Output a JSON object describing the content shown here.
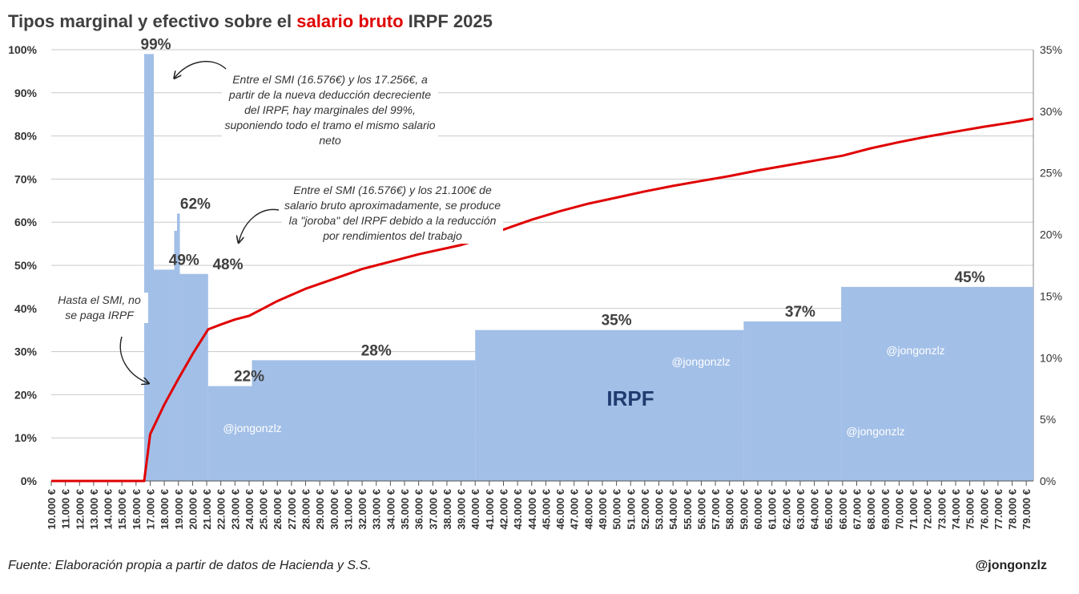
{
  "title": {
    "part1": "Tipos marginal y efectivo sobre el ",
    "highlight": "salario bruto",
    "part2": " IRPF 2025"
  },
  "footer": {
    "source": "Fuente: Elaboración propia a partir de datos de Hacienda y S.S.",
    "handle": "@jongonzlz"
  },
  "annotations": {
    "marginal99": "Entre el SMI (16.576€) y los 17.256€, a partir de la nueva deducción decreciente del IRPF, hay marginales del 99%, suponiendo todo el tramo el mismo salario neto",
    "joroba": "Entre el SMI (16.576€) y los 21.100€ de salario bruto aproximadamente, se produce la \"joroba\" del IRPF debido a la reducción por rendimientos del trabajo",
    "smi": "Hasta el SMI, no se paga IRPF"
  },
  "watermark": "@jongonzlz",
  "colors": {
    "bars": "#a2bfe7",
    "line": "#e00000",
    "grid": "#c8c8c8",
    "irpf_label": "#1f3b70",
    "title_highlight": "#e00000"
  },
  "chart_data": {
    "type": "bar+line",
    "x_unit": "salario bruto (€)",
    "xlim": [
      10000,
      79000
    ],
    "x_ticks": [
      10000,
      11000,
      12000,
      13000,
      14000,
      15000,
      16000,
      17000,
      18000,
      19000,
      20000,
      21000,
      22000,
      23000,
      24000,
      25000,
      26000,
      27000,
      28000,
      29000,
      30000,
      31000,
      32000,
      33000,
      34000,
      35000,
      36000,
      37000,
      38000,
      39000,
      40000,
      41000,
      42000,
      43000,
      44000,
      45000,
      46000,
      47000,
      48000,
      49000,
      50000,
      51000,
      52000,
      53000,
      54000,
      55000,
      56000,
      57000,
      58000,
      59000,
      60000,
      61000,
      62000,
      63000,
      64000,
      65000,
      66000,
      67000,
      68000,
      69000,
      70000,
      71000,
      72000,
      73000,
      74000,
      75000,
      76000,
      77000,
      78000,
      79000
    ],
    "x_tick_labels": [
      "10.000 €",
      "11.000 €",
      "12.000 €",
      "13.000 €",
      "14.000 €",
      "15.000 €",
      "16.000 €",
      "17.000 €",
      "18.000 €",
      "19.000 €",
      "20.000 €",
      "21.000 €",
      "22.000 €",
      "23.000 €",
      "24.000 €",
      "25.000 €",
      "26.000 €",
      "27.000 €",
      "28.000 €",
      "29.000 €",
      "30.000 €",
      "31.000 €",
      "32.000 €",
      "33.000 €",
      "34.000 €",
      "35.000 €",
      "36.000 €",
      "37.000 €",
      "38.000 €",
      "39.000 €",
      "40.000 €",
      "41.000 €",
      "42.000 €",
      "43.000 €",
      "44.000 €",
      "45.000 €",
      "46.000 €",
      "47.000 €",
      "48.000 €",
      "49.000 €",
      "50.000 €",
      "51.000 €",
      "52.000 €",
      "53.000 €",
      "54.000 €",
      "55.000 €",
      "56.000 €",
      "57.000 €",
      "58.000 €",
      "59.000 €",
      "60.000 €",
      "61.000 €",
      "62.000 €",
      "63.000 €",
      "64.000 €",
      "65.000 €",
      "66.000 €",
      "67.000 €",
      "68.000 €",
      "69.000 €",
      "70.000 €",
      "71.000 €",
      "72.000 €",
      "73.000 €",
      "74.000 €",
      "75.000 €",
      "76.000 €",
      "77.000 €",
      "78.000 €",
      "79.000 €"
    ],
    "y_left": {
      "range": [
        0,
        100
      ],
      "ticks": [
        0,
        10,
        20,
        30,
        40,
        50,
        60,
        70,
        80,
        90,
        100
      ],
      "tick_labels": [
        "0%",
        "10%",
        "20%",
        "30%",
        "40%",
        "50%",
        "60%",
        "70%",
        "80%",
        "90%",
        "100%"
      ]
    },
    "y_right": {
      "range": [
        0,
        35
      ],
      "ticks": [
        0,
        5,
        10,
        15,
        20,
        25,
        30,
        35
      ],
      "tick_labels": [
        "0%",
        "5%",
        "10%",
        "15%",
        "20%",
        "25%",
        "30%",
        "35%"
      ]
    },
    "grid": true,
    "series": [
      {
        "name": "IRPF",
        "kind": "step-area",
        "axis": "left",
        "steps": [
          {
            "from": 16576,
            "to": 17256,
            "value": 99
          },
          {
            "from": 17256,
            "to": 18700,
            "value": 49
          },
          {
            "from": 18700,
            "to": 18900,
            "value": 58
          },
          {
            "from": 18900,
            "to": 19100,
            "value": 62
          },
          {
            "from": 19100,
            "to": 21100,
            "value": 48
          },
          {
            "from": 21100,
            "to": 24200,
            "value": 22
          },
          {
            "from": 24200,
            "to": 40000,
            "value": 28
          },
          {
            "from": 40000,
            "to": 59000,
            "value": 35
          },
          {
            "from": 59000,
            "to": 65900,
            "value": 37
          },
          {
            "from": 65900,
            "to": 79500,
            "value": 45
          }
        ]
      },
      {
        "name": "",
        "kind": "line",
        "axis": "right",
        "points": [
          [
            10000,
            0
          ],
          [
            16576,
            0
          ],
          [
            17000,
            3.8
          ],
          [
            18000,
            6.2
          ],
          [
            19000,
            8.3
          ],
          [
            20000,
            10.3
          ],
          [
            21100,
            12.3
          ],
          [
            22000,
            12.7
          ],
          [
            23000,
            13.1
          ],
          [
            24000,
            13.4
          ],
          [
            25000,
            14.0
          ],
          [
            26000,
            14.6
          ],
          [
            27000,
            15.1
          ],
          [
            28000,
            15.6
          ],
          [
            29000,
            16.0
          ],
          [
            30000,
            16.4
          ],
          [
            31000,
            16.8
          ],
          [
            32000,
            17.2
          ],
          [
            33000,
            17.5
          ],
          [
            34000,
            17.8
          ],
          [
            35000,
            18.1
          ],
          [
            36000,
            18.4
          ],
          [
            37000,
            18.65
          ],
          [
            38000,
            18.9
          ],
          [
            39000,
            19.15
          ],
          [
            40000,
            19.5
          ],
          [
            42000,
            20.4
          ],
          [
            44000,
            21.2
          ],
          [
            46000,
            21.9
          ],
          [
            48000,
            22.5
          ],
          [
            50000,
            23.0
          ],
          [
            52000,
            23.5
          ],
          [
            54000,
            23.95
          ],
          [
            56000,
            24.35
          ],
          [
            58000,
            24.75
          ],
          [
            60000,
            25.2
          ],
          [
            62000,
            25.6
          ],
          [
            64000,
            26.0
          ],
          [
            66000,
            26.4
          ],
          [
            68000,
            27.0
          ],
          [
            70000,
            27.5
          ],
          [
            72000,
            27.95
          ],
          [
            74000,
            28.35
          ],
          [
            76000,
            28.75
          ],
          [
            78000,
            29.1
          ],
          [
            79500,
            29.4
          ]
        ]
      }
    ],
    "step_labels": [
      {
        "text": "99%",
        "x": 17400,
        "y": 99
      },
      {
        "text": "62%",
        "x": 20200,
        "y": 62
      },
      {
        "text": "49%",
        "x": 19400,
        "y": 49
      },
      {
        "text": "48%",
        "x": 22500,
        "y": 48
      },
      {
        "text": "22%",
        "x": 24000,
        "y": 22
      },
      {
        "text": "28%",
        "x": 33000,
        "y": 28
      },
      {
        "text": "35%",
        "x": 50000,
        "y": 35
      },
      {
        "text": "37%",
        "x": 63000,
        "y": 37
      },
      {
        "text": "45%",
        "x": 75000,
        "y": 45
      }
    ],
    "area_label": "IRPF"
  }
}
